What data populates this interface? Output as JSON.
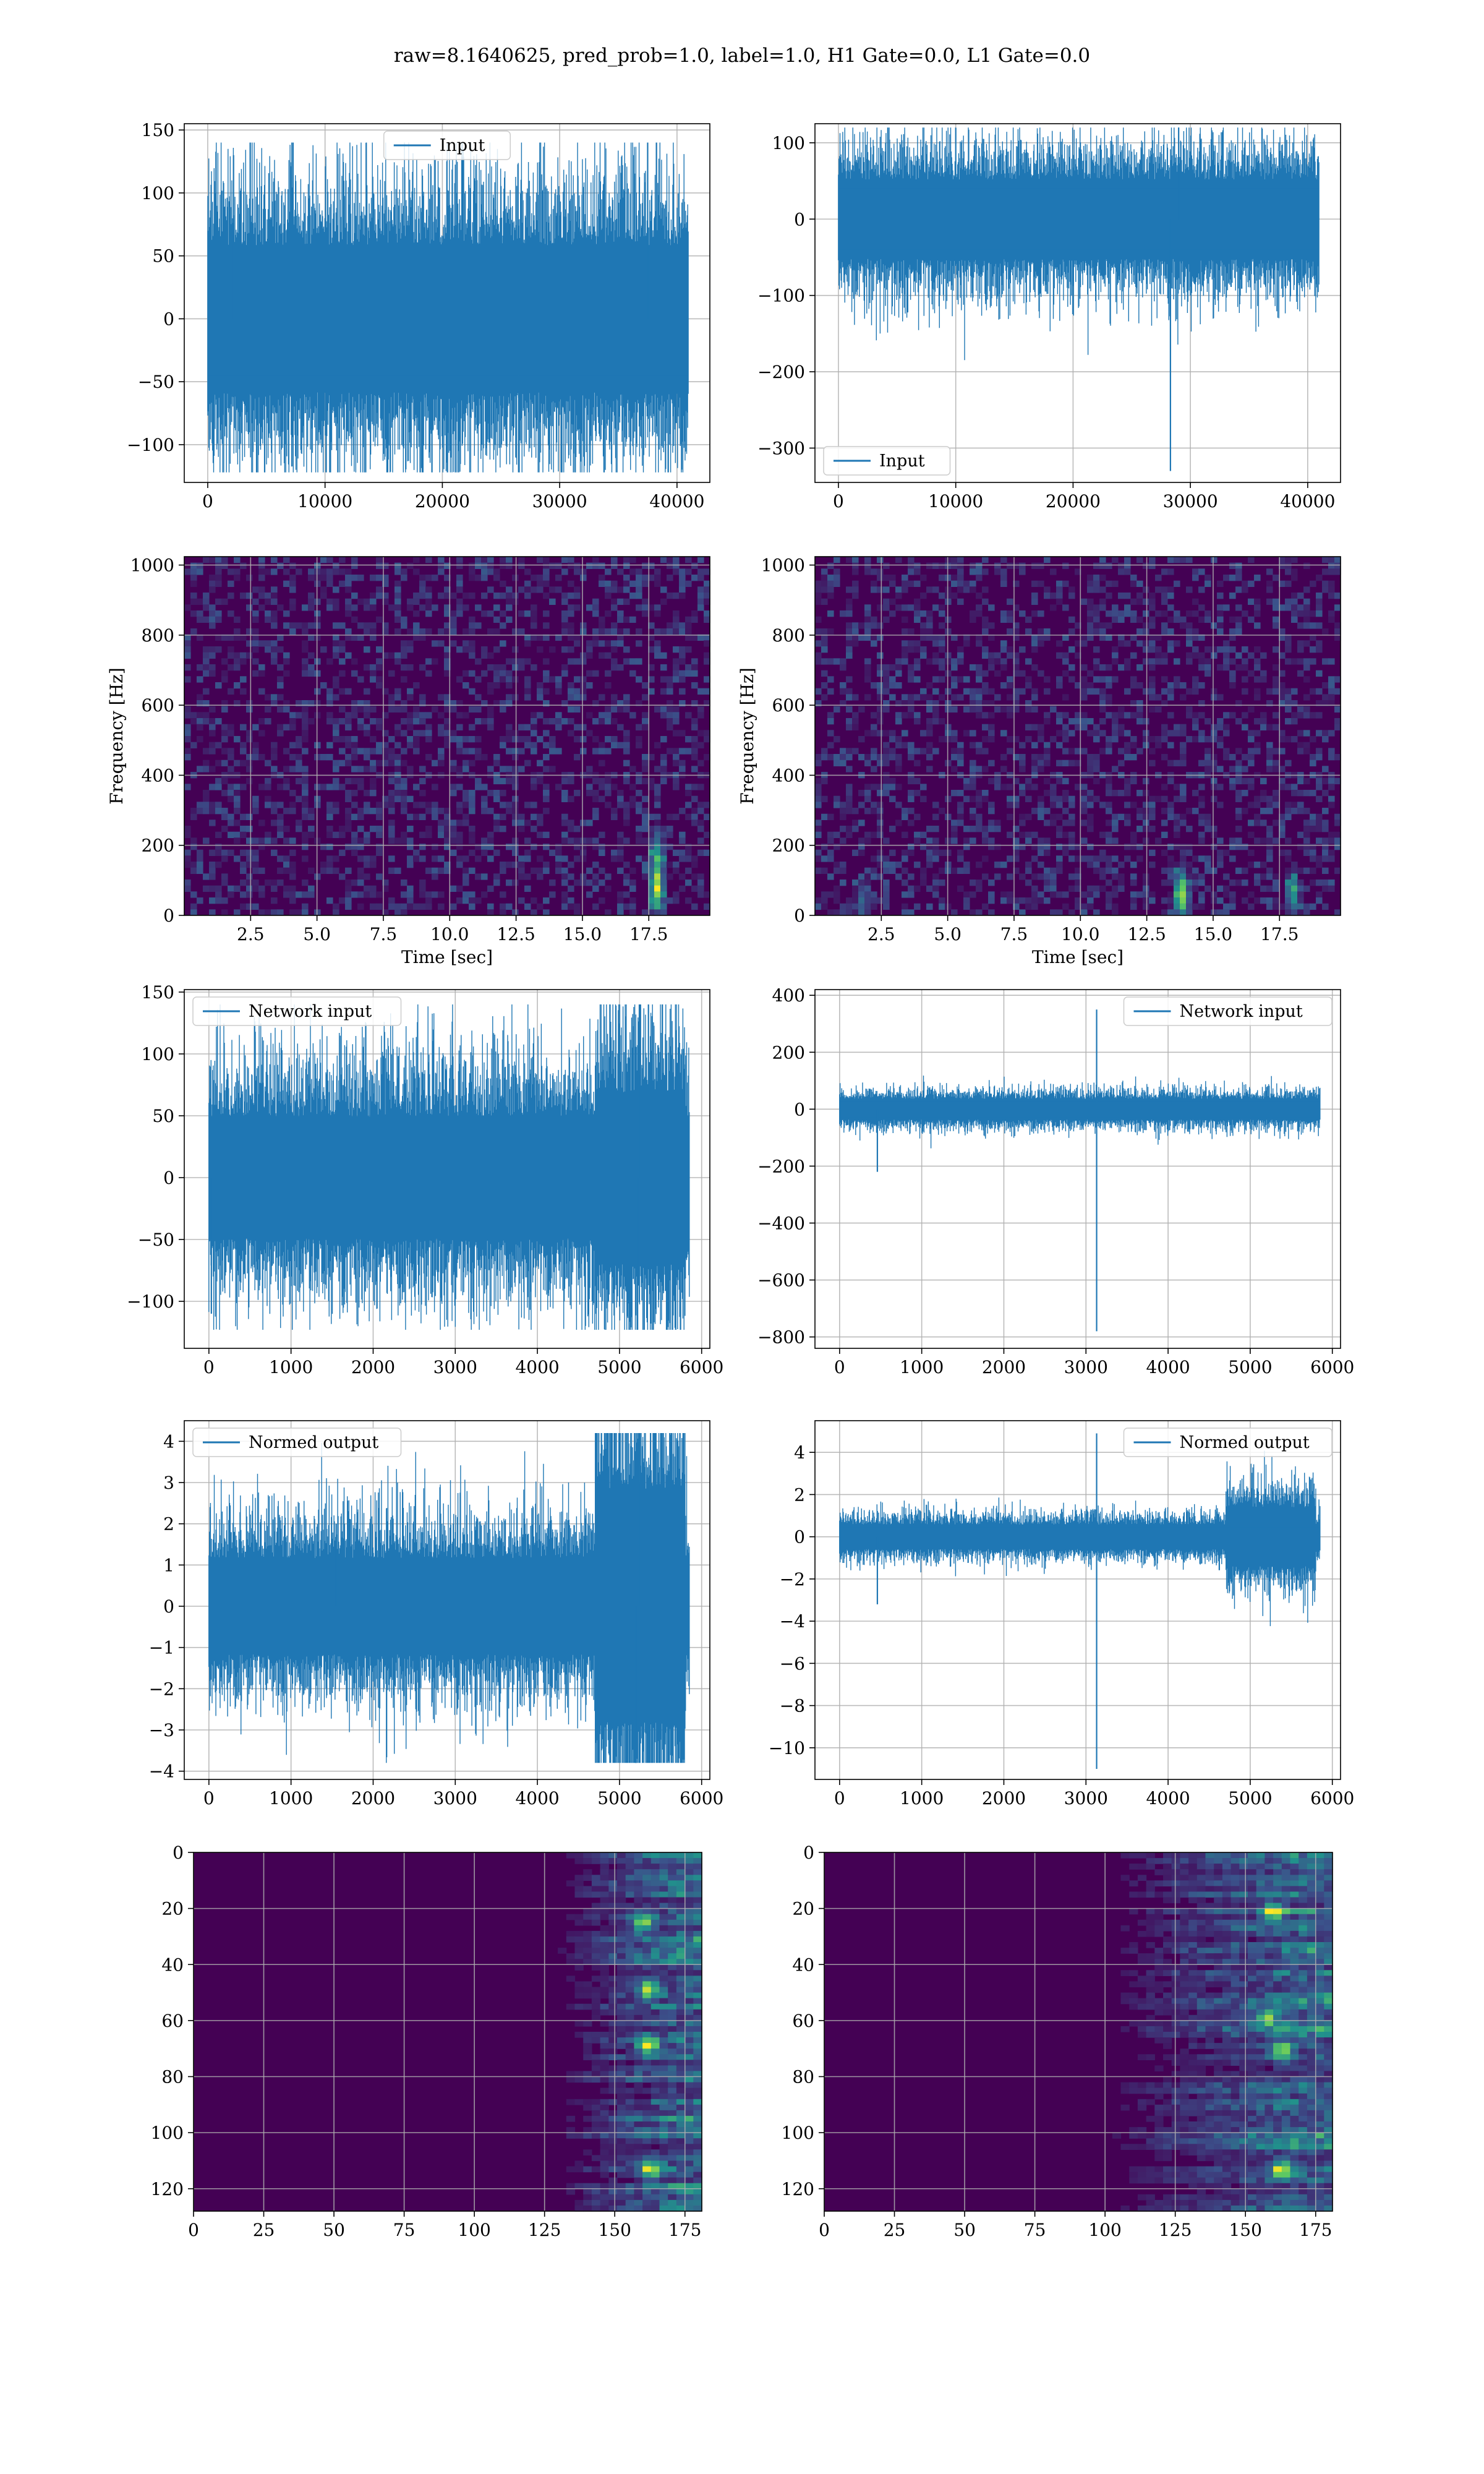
{
  "figure_title": "raw=8.1640625, pred_prob=1.0, label=1.0, H1 Gate=0.0, L1 Gate=0.0",
  "colors": {
    "series": "#1f77b4",
    "grid": "#b0b0b0",
    "viridis_low": "#440154",
    "viridis_mid": "#21918c",
    "viridis_high": "#fde725"
  },
  "chart_data": [
    {
      "type": "line",
      "id": "p00",
      "row": 0,
      "col": 0,
      "legend": "Input",
      "legend_loc": "upper center",
      "xlabel": "",
      "ylabel": "",
      "xlim": [
        -2000,
        42800
      ],
      "ylim": [
        -130,
        155
      ],
      "x_ticks": [
        0,
        10000,
        20000,
        30000,
        40000
      ],
      "x_tick_labels": [
        "0",
        "10000",
        "20000",
        "30000",
        "40000"
      ],
      "y_ticks": [
        -100,
        -50,
        0,
        50,
        100,
        150
      ],
      "y_tick_labels": [
        "−100",
        "−50",
        "0",
        "50",
        "100",
        "150"
      ],
      "x_range": [
        0,
        40960
      ],
      "amplitude": 45,
      "max": 140,
      "min": -122,
      "features": [
        {
          "x": 2200,
          "y": 130
        },
        {
          "x": 37500,
          "y": 140
        },
        {
          "x": 26500,
          "y": -122
        }
      ]
    },
    {
      "type": "line",
      "id": "p01",
      "row": 0,
      "col": 1,
      "legend": "Input",
      "legend_loc": "lower left",
      "xlabel": "",
      "ylabel": "",
      "xlim": [
        -2000,
        42800
      ],
      "ylim": [
        -345,
        125
      ],
      "x_ticks": [
        0,
        10000,
        20000,
        30000,
        40000
      ],
      "x_tick_labels": [
        "0",
        "10000",
        "20000",
        "30000",
        "40000"
      ],
      "y_ticks": [
        -300,
        -200,
        -100,
        0,
        100
      ],
      "y_tick_labels": [
        "−300",
        "−200",
        "−100",
        "0",
        "100"
      ],
      "x_range": [
        0,
        40960
      ],
      "amplitude": 40,
      "max": 120,
      "min": -330,
      "features": [
        {
          "x": 28300,
          "y": -330
        },
        {
          "x": 29000,
          "y": 120
        }
      ]
    },
    {
      "type": "heatmap",
      "id": "p10",
      "row": 1,
      "col": 0,
      "xlabel": "Time [sec]",
      "ylabel": "Frequency [Hz]",
      "xlim": [
        0,
        19.8
      ],
      "ylim": [
        0,
        1024
      ],
      "x_ticks": [
        2.5,
        5.0,
        7.5,
        10.0,
        12.5,
        15.0,
        17.5
      ],
      "x_tick_labels": [
        "2.5",
        "5.0",
        "7.5",
        "10.0",
        "12.5",
        "15.0",
        "17.5"
      ],
      "y_ticks": [
        0,
        200,
        400,
        600,
        800,
        1000
      ],
      "y_tick_labels": [
        "0",
        "200",
        "400",
        "600",
        "800",
        "1000"
      ],
      "hotspots": [
        {
          "t": 17.8,
          "f": 80,
          "intensity": 0.8
        },
        {
          "t": 17.8,
          "f": 180,
          "intensity": 0.45
        }
      ]
    },
    {
      "type": "heatmap",
      "id": "p11",
      "row": 1,
      "col": 1,
      "xlabel": "Time [sec]",
      "ylabel": "Frequency [Hz]",
      "xlim": [
        0,
        19.8
      ],
      "ylim": [
        0,
        1024
      ],
      "x_ticks": [
        2.5,
        5.0,
        7.5,
        10.0,
        12.5,
        15.0,
        17.5
      ],
      "x_tick_labels": [
        "2.5",
        "5.0",
        "7.5",
        "10.0",
        "12.5",
        "15.0",
        "17.5"
      ],
      "y_ticks": [
        0,
        200,
        400,
        600,
        800,
        1000
      ],
      "y_tick_labels": [
        "0",
        "200",
        "400",
        "600",
        "800",
        "1000"
      ],
      "hotspots": [
        {
          "t": 13.8,
          "f": 60,
          "intensity": 0.85
        },
        {
          "t": 18.0,
          "f": 60,
          "intensity": 0.45
        },
        {
          "t": 1.8,
          "f": 40,
          "intensity": 0.3
        }
      ]
    },
    {
      "type": "line",
      "id": "p20",
      "row": 2,
      "col": 0,
      "legend": "Network input",
      "legend_loc": "upper left",
      "xlabel": "",
      "ylabel": "",
      "xlim": [
        -300,
        6100
      ],
      "ylim": [
        -138,
        152
      ],
      "x_ticks": [
        0,
        1000,
        2000,
        3000,
        4000,
        5000,
        6000
      ],
      "x_tick_labels": [
        "0",
        "1000",
        "2000",
        "3000",
        "4000",
        "5000",
        "6000"
      ],
      "y_ticks": [
        -100,
        -50,
        0,
        50,
        100,
        150
      ],
      "y_tick_labels": [
        "−100",
        "−50",
        "0",
        "50",
        "100",
        "150"
      ],
      "x_range": [
        0,
        5850
      ],
      "amplitude": 38,
      "max": 140,
      "min": -123,
      "features": [
        {
          "x": 5250,
          "y": 140
        },
        {
          "x": 5220,
          "y": -123
        },
        {
          "x": 30,
          "y": -110
        }
      ]
    },
    {
      "type": "line",
      "id": "p21",
      "row": 2,
      "col": 1,
      "legend": "Network input",
      "legend_loc": "upper right",
      "xlabel": "",
      "ylabel": "",
      "xlim": [
        -300,
        6100
      ],
      "ylim": [
        -840,
        420
      ],
      "x_ticks": [
        0,
        1000,
        2000,
        3000,
        4000,
        5000,
        6000
      ],
      "x_tick_labels": [
        "0",
        "1000",
        "2000",
        "3000",
        "4000",
        "5000",
        "6000"
      ],
      "y_ticks": [
        -800,
        -600,
        -400,
        -200,
        0,
        200,
        400
      ],
      "y_tick_labels": [
        "−800",
        "−600",
        "−400",
        "−200",
        "0",
        "200",
        "400"
      ],
      "x_range": [
        0,
        5850
      ],
      "amplitude": 28,
      "max": 350,
      "min": -780,
      "features": [
        {
          "x": 3130,
          "y": 350
        },
        {
          "x": 3130,
          "y": -780
        },
        {
          "x": 460,
          "y": -220
        }
      ]
    },
    {
      "type": "line",
      "id": "p30",
      "row": 3,
      "col": 0,
      "legend": "Normed output",
      "legend_loc": "upper left",
      "xlabel": "",
      "ylabel": "",
      "xlim": [
        -300,
        6100
      ],
      "ylim": [
        -4.2,
        4.5
      ],
      "x_ticks": [
        0,
        1000,
        2000,
        3000,
        4000,
        5000,
        6000
      ],
      "x_tick_labels": [
        "0",
        "1000",
        "2000",
        "3000",
        "4000",
        "5000",
        "6000"
      ],
      "y_ticks": [
        -4,
        -3,
        -2,
        -1,
        0,
        1,
        2,
        3,
        4
      ],
      "y_tick_labels": [
        "−4",
        "−3",
        "−2",
        "−1",
        "0",
        "1",
        "2",
        "3",
        "4"
      ],
      "x_range": [
        0,
        5850
      ],
      "amplitude": 0.9,
      "max": 4.2,
      "min": -3.8,
      "features": [
        {
          "x": 5250,
          "y": 4.2
        },
        {
          "x": 5200,
          "y": -3.8
        },
        {
          "x": 1550,
          "y": 2.0
        }
      ]
    },
    {
      "type": "line",
      "id": "p31",
      "row": 3,
      "col": 1,
      "legend": "Normed output",
      "legend_loc": "upper right",
      "xlabel": "",
      "ylabel": "",
      "xlim": [
        -300,
        6100
      ],
      "ylim": [
        -11.5,
        5.5
      ],
      "x_ticks": [
        0,
        1000,
        2000,
        3000,
        4000,
        5000,
        6000
      ],
      "x_tick_labels": [
        "0",
        "1000",
        "2000",
        "3000",
        "4000",
        "5000",
        "6000"
      ],
      "y_ticks": [
        -10,
        -8,
        -6,
        -4,
        -2,
        0,
        2,
        4
      ],
      "y_tick_labels": [
        "−10",
        "−8",
        "−6",
        "−4",
        "−2",
        "0",
        "2",
        "4"
      ],
      "x_range": [
        0,
        5850
      ],
      "amplitude": 0.45,
      "max": 4.9,
      "min": -11,
      "features": [
        {
          "x": 3130,
          "y": 4.9
        },
        {
          "x": 3130,
          "y": -11
        },
        {
          "x": 460,
          "y": -3.2
        }
      ]
    },
    {
      "type": "heatmap",
      "id": "p40",
      "row": 4,
      "col": 0,
      "xlabel": "",
      "ylabel": "",
      "xlim": [
        0,
        181
      ],
      "ylim": [
        128,
        0
      ],
      "x_ticks": [
        0,
        25,
        50,
        75,
        100,
        125,
        150,
        175
      ],
      "x_tick_labels": [
        "0",
        "25",
        "50",
        "75",
        "100",
        "125",
        "150",
        "175"
      ],
      "y_ticks": [
        0,
        20,
        40,
        60,
        80,
        100,
        120
      ],
      "y_tick_labels": [
        "0",
        "20",
        "40",
        "60",
        "80",
        "100",
        "120"
      ],
      "active_from": 125,
      "hotspots": [
        {
          "x": 162,
          "y": 68
        },
        {
          "x": 163,
          "y": 112
        },
        {
          "x": 160,
          "y": 24
        },
        {
          "x": 162,
          "y": 48
        }
      ]
    },
    {
      "type": "heatmap",
      "id": "p41",
      "row": 4,
      "col": 1,
      "xlabel": "",
      "ylabel": "",
      "xlim": [
        0,
        181
      ],
      "ylim": [
        128,
        0
      ],
      "x_ticks": [
        0,
        25,
        50,
        75,
        100,
        125,
        150,
        175
      ],
      "x_tick_labels": [
        "0",
        "25",
        "50",
        "75",
        "100",
        "125",
        "150",
        "175"
      ],
      "y_ticks": [
        0,
        20,
        40,
        60,
        80,
        100,
        120
      ],
      "y_tick_labels": [
        "0",
        "20",
        "40",
        "60",
        "80",
        "100",
        "120"
      ],
      "active_from": 95,
      "hotspots": [
        {
          "x": 163,
          "y": 70
        },
        {
          "x": 163,
          "y": 112
        },
        {
          "x": 160,
          "y": 20
        },
        {
          "x": 158,
          "y": 58
        }
      ]
    }
  ]
}
